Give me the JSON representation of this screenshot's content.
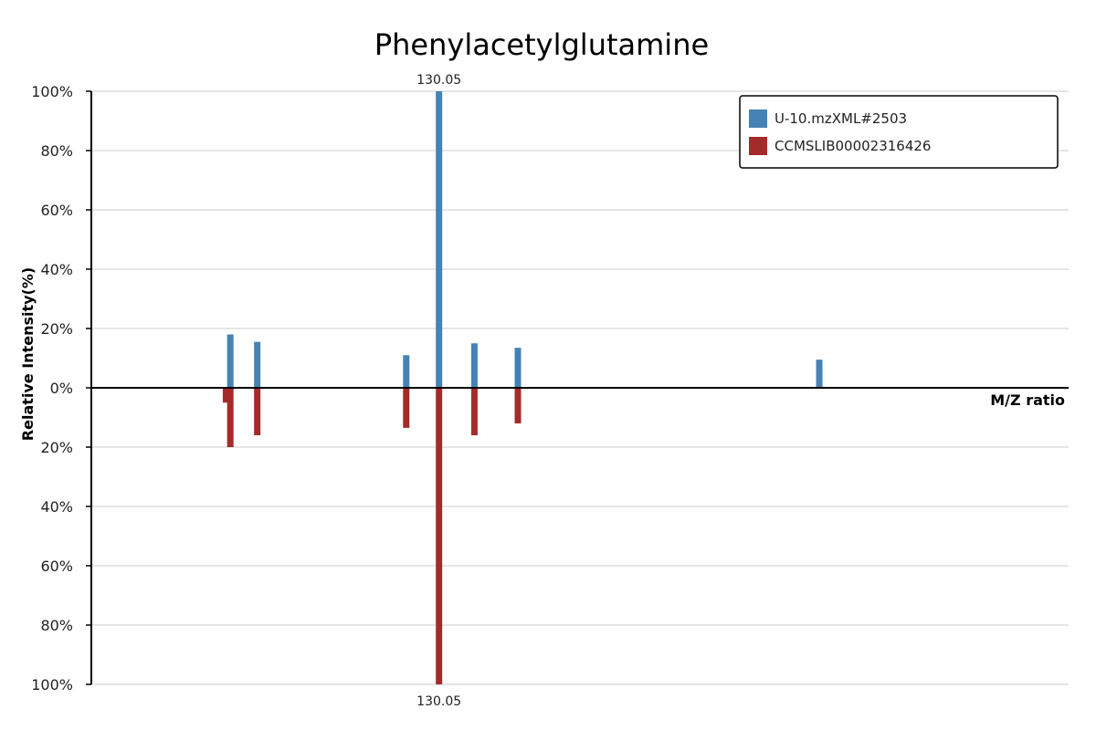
{
  "chart_data": {
    "type": "bar",
    "title": "Phenylacetylglutamine",
    "xlabel": "M/Z ratio",
    "ylabel": "Relative Intensity(%)",
    "x_range": [
      50,
      275
    ],
    "y_top_ticks": [
      "100%",
      "80%",
      "60%",
      "40%",
      "20%",
      "0%"
    ],
    "y_bottom_ticks": [
      "20%",
      "40%",
      "60%",
      "80%",
      "100%"
    ],
    "y_tick_values": [
      100,
      80,
      60,
      40,
      20,
      0,
      -20,
      -40,
      -60,
      -80,
      -100
    ],
    "series": [
      {
        "name": "U-10.mzXML#2503",
        "color": "#4682b4",
        "direction": "up",
        "peaks": [
          {
            "mz": 82.0,
            "intensity": 18
          },
          {
            "mz": 88.2,
            "intensity": 15.5
          },
          {
            "mz": 122.5,
            "intensity": 11
          },
          {
            "mz": 130.05,
            "intensity": 100,
            "label": "130.05"
          },
          {
            "mz": 138.2,
            "intensity": 15
          },
          {
            "mz": 148.2,
            "intensity": 13.5
          },
          {
            "mz": 217.6,
            "intensity": 9.5
          }
        ]
      },
      {
        "name": "CCMSLIB00002316426",
        "color": "#a52a2a",
        "direction": "down",
        "peaks": [
          {
            "mz": 81.0,
            "intensity": 5
          },
          {
            "mz": 82.0,
            "intensity": 20
          },
          {
            "mz": 88.2,
            "intensity": 16
          },
          {
            "mz": 122.5,
            "intensity": 13.5
          },
          {
            "mz": 130.05,
            "intensity": 100,
            "label": "130.05"
          },
          {
            "mz": 138.2,
            "intensity": 16
          },
          {
            "mz": 148.2,
            "intensity": 12
          }
        ]
      }
    ],
    "legend_position": "top-right"
  }
}
